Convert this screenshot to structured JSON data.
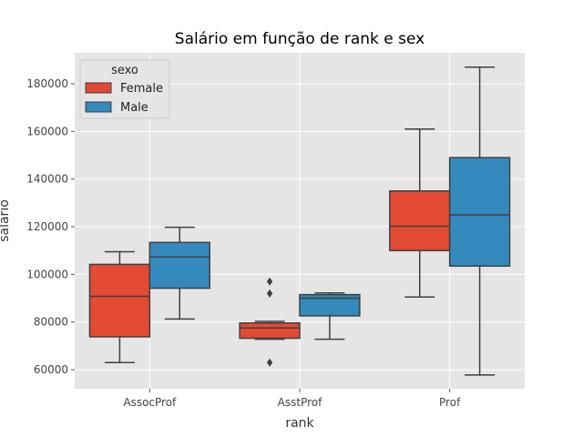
{
  "chart_data": {
    "type": "box",
    "title": "Salário em função de rank e sex",
    "xlabel": "rank",
    "ylabel": "salario",
    "categories": [
      "AssocProf",
      "AsstProf",
      "Prof"
    ],
    "ylim": [
      52000,
      193000
    ],
    "yticks": [
      60000,
      80000,
      100000,
      120000,
      140000,
      160000,
      180000
    ],
    "grid": true,
    "legend": {
      "title": "sexo",
      "position": "top-left"
    },
    "series": [
      {
        "name": "Female",
        "color": "#E24A33",
        "boxes": [
          {
            "category": "AssocProf",
            "whislo": 63000,
            "q1": 73800,
            "median": 90800,
            "q3": 104200,
            "whishi": 109500,
            "fliers": []
          },
          {
            "category": "AsstProf",
            "whislo": 72800,
            "q1": 73200,
            "median": 77500,
            "q3": 79600,
            "whishi": 80300,
            "fliers": [
              97000,
              92000,
              63000
            ]
          },
          {
            "category": "Prof",
            "whislo": 90500,
            "q1": 110000,
            "median": 120200,
            "q3": 135000,
            "whishi": 161000,
            "fliers": []
          }
        ]
      },
      {
        "name": "Male",
        "color": "#348ABD",
        "boxes": [
          {
            "category": "AssocProf",
            "whislo": 81300,
            "q1": 94200,
            "median": 107300,
            "q3": 113400,
            "whishi": 119800,
            "fliers": []
          },
          {
            "category": "AsstProf",
            "whislo": 72800,
            "q1": 82600,
            "median": 90000,
            "q3": 91500,
            "whishi": 92200,
            "fliers": []
          },
          {
            "category": "Prof",
            "whislo": 57800,
            "q1": 103500,
            "median": 125000,
            "q3": 149000,
            "whishi": 187000,
            "fliers": []
          }
        ]
      }
    ]
  }
}
